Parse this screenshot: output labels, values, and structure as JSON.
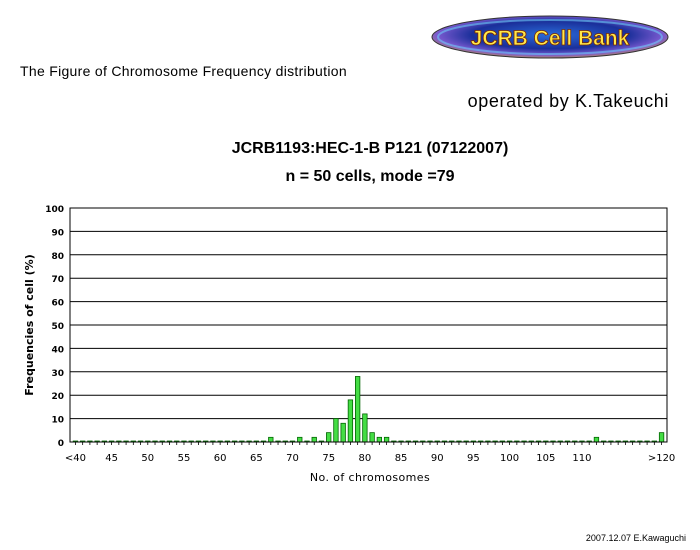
{
  "header": {
    "logo_text": "JCRB Cell Bank",
    "caption": "The Figure of Chromosome Frequency distribution",
    "operator": "operated by K.Takeuchi"
  },
  "footer": {
    "credit": "2007.12.07 E.Kawaguchi"
  },
  "colors": {
    "bar_fill": "#44dd44",
    "bar_stroke": "#006600",
    "grid": "#000000"
  },
  "chart_data": {
    "type": "bar",
    "title": "JCRB1193:HEC-1-B P121 (07122007)",
    "subtitle": "n = 50 cells, mode =79",
    "xlabel": "No. of chromosomes",
    "ylabel": "Frequencies of cell (%)",
    "ylim": [
      0,
      100
    ],
    "yticks": [
      0,
      10,
      20,
      30,
      40,
      50,
      60,
      70,
      80,
      90,
      100
    ],
    "xtick_labels": [
      "<40",
      "45",
      "50",
      "55",
      "60",
      "65",
      "70",
      "75",
      "80",
      "85",
      "90",
      "95",
      "100",
      "105",
      "110",
      ">120"
    ],
    "grid": true,
    "categories": [
      "<40",
      "41",
      "42",
      "43",
      "44",
      "45",
      "46",
      "47",
      "48",
      "49",
      "50",
      "51",
      "52",
      "53",
      "54",
      "55",
      "56",
      "57",
      "58",
      "59",
      "60",
      "61",
      "62",
      "63",
      "64",
      "65",
      "66",
      "67",
      "68",
      "69",
      "70",
      "71",
      "72",
      "73",
      "74",
      "75",
      "76",
      "77",
      "78",
      "79",
      "80",
      "81",
      "82",
      "83",
      "84",
      "85",
      "86",
      "87",
      "88",
      "89",
      "90",
      "91",
      "92",
      "93",
      "94",
      "95",
      "96",
      "97",
      "98",
      "99",
      "100",
      "101",
      "102",
      "103",
      "104",
      "105",
      "106",
      "107",
      "108",
      "109",
      "110",
      "111",
      "112",
      "113",
      "114",
      "115",
      "116",
      "117",
      "118",
      "119",
      "120",
      ">120"
    ],
    "values": [
      0,
      0,
      0,
      0,
      0,
      0,
      0,
      0,
      0,
      0,
      0,
      0,
      0,
      0,
      0,
      0,
      0,
      0,
      0,
      0,
      0,
      0,
      0,
      0,
      0,
      0,
      0,
      2,
      0,
      0,
      0,
      2,
      0,
      2,
      0,
      4,
      10,
      8,
      18,
      28,
      12,
      4,
      2,
      2,
      0,
      0,
      0,
      0,
      0,
      0,
      0,
      0,
      0,
      0,
      0,
      0,
      0,
      0,
      0,
      0,
      0,
      0,
      0,
      0,
      0,
      0,
      0,
      0,
      0,
      0,
      0,
      0,
      2,
      0,
      0,
      0,
      0,
      0,
      0,
      0,
      0,
      4
    ]
  }
}
